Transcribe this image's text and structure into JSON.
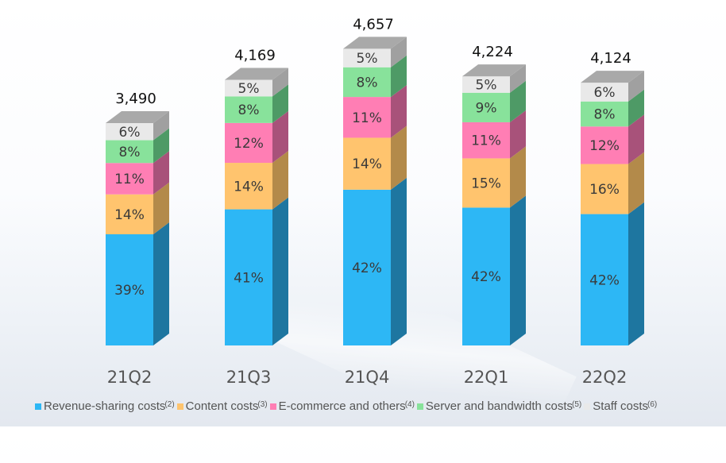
{
  "chart_data": {
    "type": "bar",
    "stacked": true,
    "style": "3d-stacked-percent-with-totals",
    "title": "",
    "xlabel": "",
    "ylabel": "",
    "categories": [
      "21Q2",
      "21Q3",
      "21Q4",
      "22Q1",
      "22Q2"
    ],
    "totals": [
      3490,
      4169,
      4657,
      4224,
      4124
    ],
    "total_labels": [
      "3,490",
      "4,169",
      "4,657",
      "4,224",
      "4,124"
    ],
    "series": [
      {
        "name": "Revenue-sharing costs",
        "note": "(2)",
        "color": "#2DB7F5",
        "side_color": "#1E76A0",
        "values": [
          39,
          41,
          42,
          42,
          42
        ]
      },
      {
        "name": "Content costs",
        "note": "(3)",
        "color": "#FFC46E",
        "side_color": "#B38A4A",
        "values": [
          14,
          14,
          14,
          15,
          16
        ]
      },
      {
        "name": "E-commerce and others",
        "note": "(4)",
        "color": "#FF7EB4",
        "side_color": "#A8527A",
        "values": [
          11,
          12,
          11,
          11,
          12
        ]
      },
      {
        "name": "Server and bandwidth costs",
        "note": "(5)",
        "color": "#88E29B",
        "side_color": "#4E9A66",
        "values": [
          8,
          8,
          8,
          9,
          8
        ]
      },
      {
        "name": "Staff costs",
        "note": "(6)",
        "color": "#E9E9E9",
        "side_color": "#A0A0A0",
        "values": [
          6,
          5,
          5,
          5,
          6
        ]
      }
    ],
    "value_format": "{v}%",
    "legend_position": "bottom",
    "grid": false,
    "ylim": [
      0,
      5000
    ]
  }
}
